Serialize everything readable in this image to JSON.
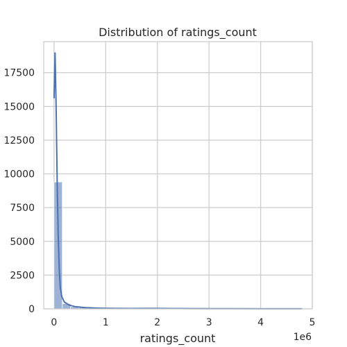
{
  "chart_data": {
    "type": "bar",
    "title": "Distribution of ratings_count",
    "xlabel": "ratings_count",
    "ylabel": "",
    "x_offset_label": "1e6",
    "xlim": [
      -0.2,
      5.0
    ],
    "ylim": [
      0,
      19800
    ],
    "x_ticks": [
      0,
      1,
      2,
      3,
      4,
      5
    ],
    "x_tick_labels": [
      "0",
      "1",
      "2",
      "3",
      "4",
      "5"
    ],
    "y_ticks": [
      0,
      2500,
      5000,
      7500,
      10000,
      12500,
      15000,
      17500
    ],
    "y_tick_labels": [
      "0",
      "2500",
      "5000",
      "7500",
      "10000",
      "12500",
      "15000",
      "17500"
    ],
    "grid": true,
    "colors": {
      "bar": "#4c72b0",
      "kde": "#4c72b0",
      "grid": "#cccccc",
      "axes_edge": "#cccccc"
    },
    "histogram": {
      "bin_edges": [
        0,
        0.16,
        0.32,
        0.48,
        0.64,
        0.8,
        0.96,
        1.12,
        1.28,
        1.44,
        1.6,
        1.76,
        1.92,
        2.08,
        2.24,
        2.4,
        2.56,
        2.72,
        2.88,
        3.04,
        3.2,
        3.36,
        3.52,
        3.68,
        3.84,
        4.0,
        4.16,
        4.32,
        4.48,
        4.64,
        4.8
      ],
      "counts": [
        9400,
        380,
        150,
        90,
        40,
        25,
        15,
        10,
        8,
        6,
        5,
        5,
        6,
        3,
        2,
        2,
        2,
        1,
        1,
        1,
        1,
        1,
        1,
        1,
        1,
        1,
        1,
        1,
        1,
        1
      ]
    },
    "kde": {
      "x": [
        0.0,
        0.02,
        0.04,
        0.06,
        0.08,
        0.1,
        0.12,
        0.15,
        0.2,
        0.25,
        0.3,
        0.4,
        0.5,
        0.6,
        0.8,
        1.0,
        1.2,
        1.5,
        1.8,
        2.0,
        2.5,
        3.0,
        3.5,
        4.0,
        4.5,
        4.8
      ],
      "y": [
        15600,
        19000,
        15000,
        9500,
        5500,
        3000,
        1600,
        900,
        500,
        380,
        270,
        170,
        130,
        90,
        60,
        40,
        30,
        25,
        30,
        30,
        20,
        15,
        10,
        8,
        5,
        4
      ]
    }
  }
}
